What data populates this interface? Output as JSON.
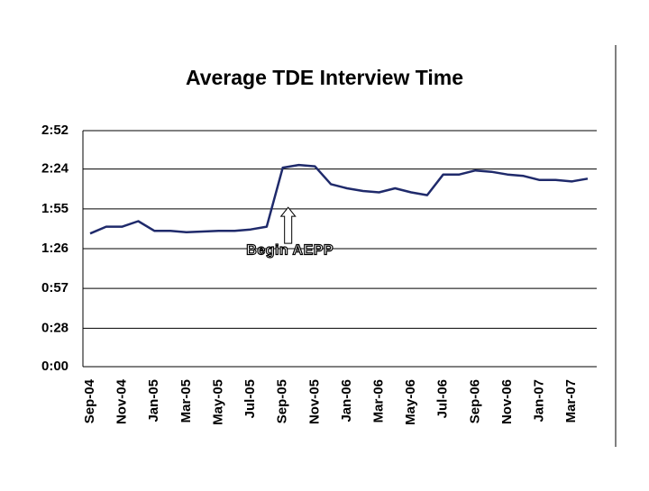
{
  "chart_data": {
    "type": "line",
    "title": "Average TDE Interview Time",
    "categories": [
      "Sep-04",
      null,
      "Nov-04",
      null,
      "Jan-05",
      null,
      "Mar-05",
      null,
      "May-05",
      null,
      "Jul-05",
      null,
      "Sep-05",
      null,
      "Nov-05",
      null,
      "Jan-06",
      null,
      "Mar-06",
      null,
      "May-06",
      null,
      "Jul-06",
      null,
      "Sep-06",
      null,
      "Nov-06",
      null,
      "Jan-07",
      null,
      "Mar-07",
      null
    ],
    "series": [
      {
        "name": "Average TDE Interview Time",
        "color": "#1f2a6b",
        "values": [
          97,
          102,
          102,
          106,
          99,
          99,
          98,
          98.5,
          99,
          99,
          100,
          102,
          145,
          147,
          146,
          133,
          130,
          128,
          127,
          130,
          127,
          125,
          140,
          140,
          143,
          142,
          140,
          139,
          136,
          136,
          135,
          137
        ]
      }
    ],
    "ylim": [
      0,
      172
    ],
    "yticks": [
      {
        "value": 0,
        "label": "0:00"
      },
      {
        "value": 28,
        "label": "0:28"
      },
      {
        "value": 57,
        "label": "0:57"
      },
      {
        "value": 86,
        "label": "1:26"
      },
      {
        "value": 115,
        "label": "1:55"
      },
      {
        "value": 144,
        "label": "2:24"
      },
      {
        "value": 172,
        "label": "2:52"
      }
    ],
    "grid": true,
    "annotations": [
      {
        "text": "Begin AEPP",
        "category": "Sep-05"
      }
    ]
  }
}
